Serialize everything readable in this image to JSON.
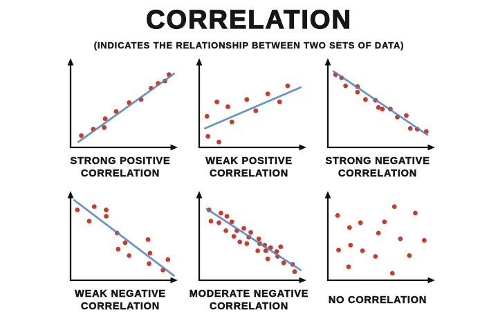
{
  "page": {
    "title": "CORRELATION",
    "subtitle": "(INDICATES THE RELATIONSHIP BETWEEN TWO SETS OF DATA)"
  },
  "colors": {
    "dot": "#cf3928",
    "line": "#4d82c3",
    "axis": "#101010",
    "text": "#161616",
    "background": "#ffffff"
  },
  "chart_data": [
    {
      "type": "scatter",
      "label": "STRONG POSITIVE\nCORRELATION",
      "xlabel": "",
      "ylabel": "",
      "x_range": [
        0,
        100
      ],
      "y_range": [
        0,
        100
      ],
      "grid": false,
      "axis_arrows": true,
      "points": [
        [
          8,
          13
        ],
        [
          20,
          21
        ],
        [
          31,
          23
        ],
        [
          32,
          34
        ],
        [
          43,
          43
        ],
        [
          56,
          54
        ],
        [
          68,
          58
        ],
        [
          78,
          72
        ],
        [
          85,
          78
        ],
        [
          92,
          81
        ],
        [
          96,
          89
        ]
      ],
      "trendline": [
        5,
        5,
        101,
        90
      ]
    },
    {
      "type": "scatter",
      "label": "WEAK POSITIVE\nCORRELATION",
      "xlabel": "",
      "ylabel": "",
      "x_range": [
        0,
        100
      ],
      "y_range": [
        0,
        100
      ],
      "grid": false,
      "axis_arrows": true,
      "points": [
        [
          5,
          37
        ],
        [
          6,
          12
        ],
        [
          15,
          55
        ],
        [
          17,
          5
        ],
        [
          26,
          49
        ],
        [
          30,
          30
        ],
        [
          45,
          58
        ],
        [
          54,
          44
        ],
        [
          66,
          65
        ],
        [
          78,
          55
        ],
        [
          86,
          75
        ]
      ],
      "trendline": [
        3,
        22,
        99,
        73
      ]
    },
    {
      "type": "scatter",
      "label": "STRONG NEGATIVE\nCORRELATION",
      "xlabel": "",
      "ylabel": "",
      "x_range": [
        0,
        100
      ],
      "y_range": [
        0,
        100
      ],
      "grid": false,
      "axis_arrows": true,
      "points": [
        [
          5,
          89
        ],
        [
          11,
          85
        ],
        [
          15,
          75
        ],
        [
          27,
          74
        ],
        [
          27,
          67
        ],
        [
          35,
          58
        ],
        [
          45,
          57
        ],
        [
          48,
          48
        ],
        [
          52,
          46
        ],
        [
          60,
          46
        ],
        [
          67,
          36
        ],
        [
          76,
          38
        ],
        [
          80,
          22
        ],
        [
          87,
          21
        ],
        [
          96,
          18
        ]
      ],
      "trendline": [
        3,
        93,
        97,
        14
      ]
    },
    {
      "type": "scatter",
      "label": "WEAK NEGATIVE\nCORRELATION",
      "xlabel": "",
      "ylabel": "",
      "x_range": [
        0,
        100
      ],
      "y_range": [
        0,
        100
      ],
      "grid": false,
      "axis_arrows": true,
      "points": [
        [
          4,
          86
        ],
        [
          16,
          72
        ],
        [
          21,
          90
        ],
        [
          33,
          86
        ],
        [
          33,
          78
        ],
        [
          44,
          57
        ],
        [
          45,
          37
        ],
        [
          52,
          45
        ],
        [
          56,
          29
        ],
        [
          75,
          49
        ],
        [
          76,
          19
        ],
        [
          77,
          32
        ],
        [
          90,
          11
        ],
        [
          95,
          24
        ]
      ],
      "trendline": [
        1,
        98,
        101,
        4
      ]
    },
    {
      "type": "scatter",
      "label": "MODERATE NEGATIVE\nCORRELATION",
      "xlabel": "",
      "ylabel": "",
      "x_range": [
        0,
        100
      ],
      "y_range": [
        0,
        100
      ],
      "grid": false,
      "axis_arrows": true,
      "points": [
        [
          7,
          86
        ],
        [
          9,
          72
        ],
        [
          19,
          82
        ],
        [
          17,
          70
        ],
        [
          25,
          78
        ],
        [
          24,
          60
        ],
        [
          30,
          71
        ],
        [
          32,
          53
        ],
        [
          35,
          60
        ],
        [
          38,
          46
        ],
        [
          42,
          63
        ],
        [
          45,
          44
        ],
        [
          47,
          52
        ],
        [
          49,
          58
        ],
        [
          56,
          35
        ],
        [
          57,
          50
        ],
        [
          58,
          44
        ],
        [
          63,
          42
        ],
        [
          64,
          35
        ],
        [
          66,
          25
        ],
        [
          69,
          39
        ],
        [
          75,
          34
        ],
        [
          76,
          28
        ],
        [
          79,
          40
        ],
        [
          82,
          20
        ],
        [
          91,
          18
        ],
        [
          93,
          9
        ]
      ],
      "trendline": [
        5,
        87,
        99,
        11
      ]
    },
    {
      "type": "scatter",
      "label": "NO CORRELATION",
      "xlabel": "",
      "ylabel": "",
      "x_range": [
        0,
        100
      ],
      "y_range": [
        0,
        100
      ],
      "grid": false,
      "axis_arrows": true,
      "points": [
        [
          7,
          79
        ],
        [
          19,
          64
        ],
        [
          30,
          70
        ],
        [
          48,
          57
        ],
        [
          54,
          71
        ],
        [
          64,
          90
        ],
        [
          70,
          50
        ],
        [
          85,
          82
        ],
        [
          94,
          48
        ],
        [
          8,
          36
        ],
        [
          20,
          42
        ],
        [
          32,
          35
        ],
        [
          45,
          28
        ],
        [
          18,
          15
        ],
        [
          62,
          7
        ],
        [
          79,
          29
        ]
      ],
      "trendline": null
    }
  ]
}
